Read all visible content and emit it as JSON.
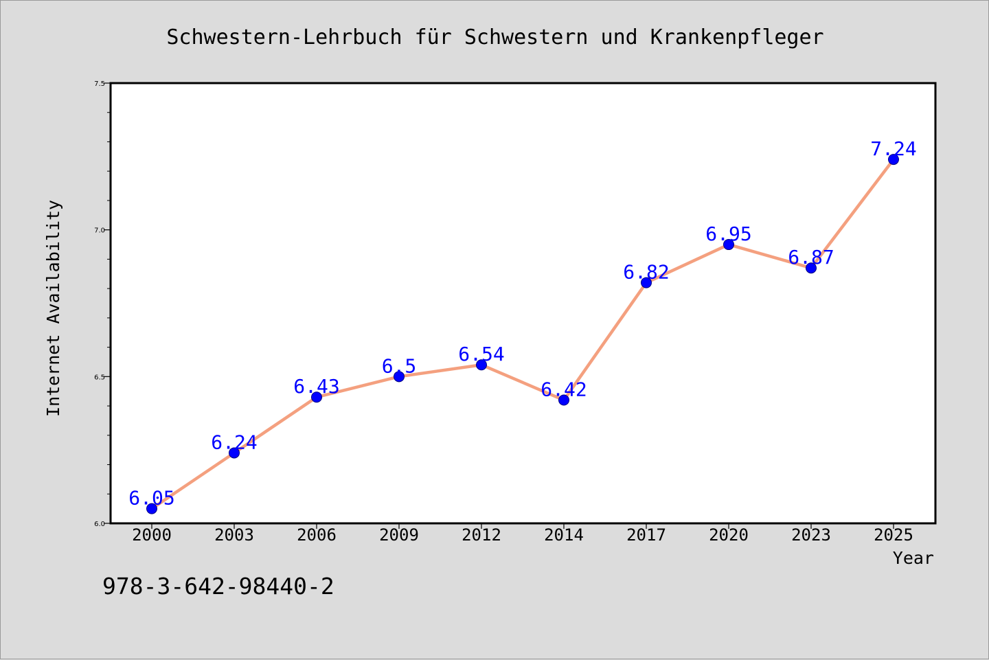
{
  "footer_text": "978-3-642-98440-2",
  "chart_data": {
    "type": "line",
    "title": "Schwestern-Lehrbuch für Schwestern und Krankenpfleger",
    "xlabel": "Year",
    "ylabel": "Internet Availability",
    "categories": [
      "2000",
      "2003",
      "2006",
      "2009",
      "2012",
      "2014",
      "2017",
      "2020",
      "2023",
      "2025"
    ],
    "values": [
      6.05,
      6.24,
      6.43,
      6.5,
      6.54,
      6.42,
      6.82,
      6.95,
      6.87,
      7.24
    ],
    "data_labels": [
      "6.05",
      "6.24",
      "6.43",
      "6.5",
      "6.54",
      "6.42",
      "6.82",
      "6.95",
      "6.87",
      "7.24"
    ],
    "ylim": [
      6.0,
      7.5
    ],
    "y_ticks": [
      "6.0",
      "6.5",
      "7.0",
      "7.5"
    ],
    "y_tick_values": [
      6.0,
      6.5,
      7.0,
      7.5
    ],
    "y_minor_step": 0.1,
    "grid": false,
    "colors": {
      "line": "#f4a07f",
      "marker": "#0000ff",
      "marker_edge": "#000080",
      "label": "#0000ff",
      "background": "#dcdcdc",
      "plot_background": "#ffffff"
    }
  }
}
